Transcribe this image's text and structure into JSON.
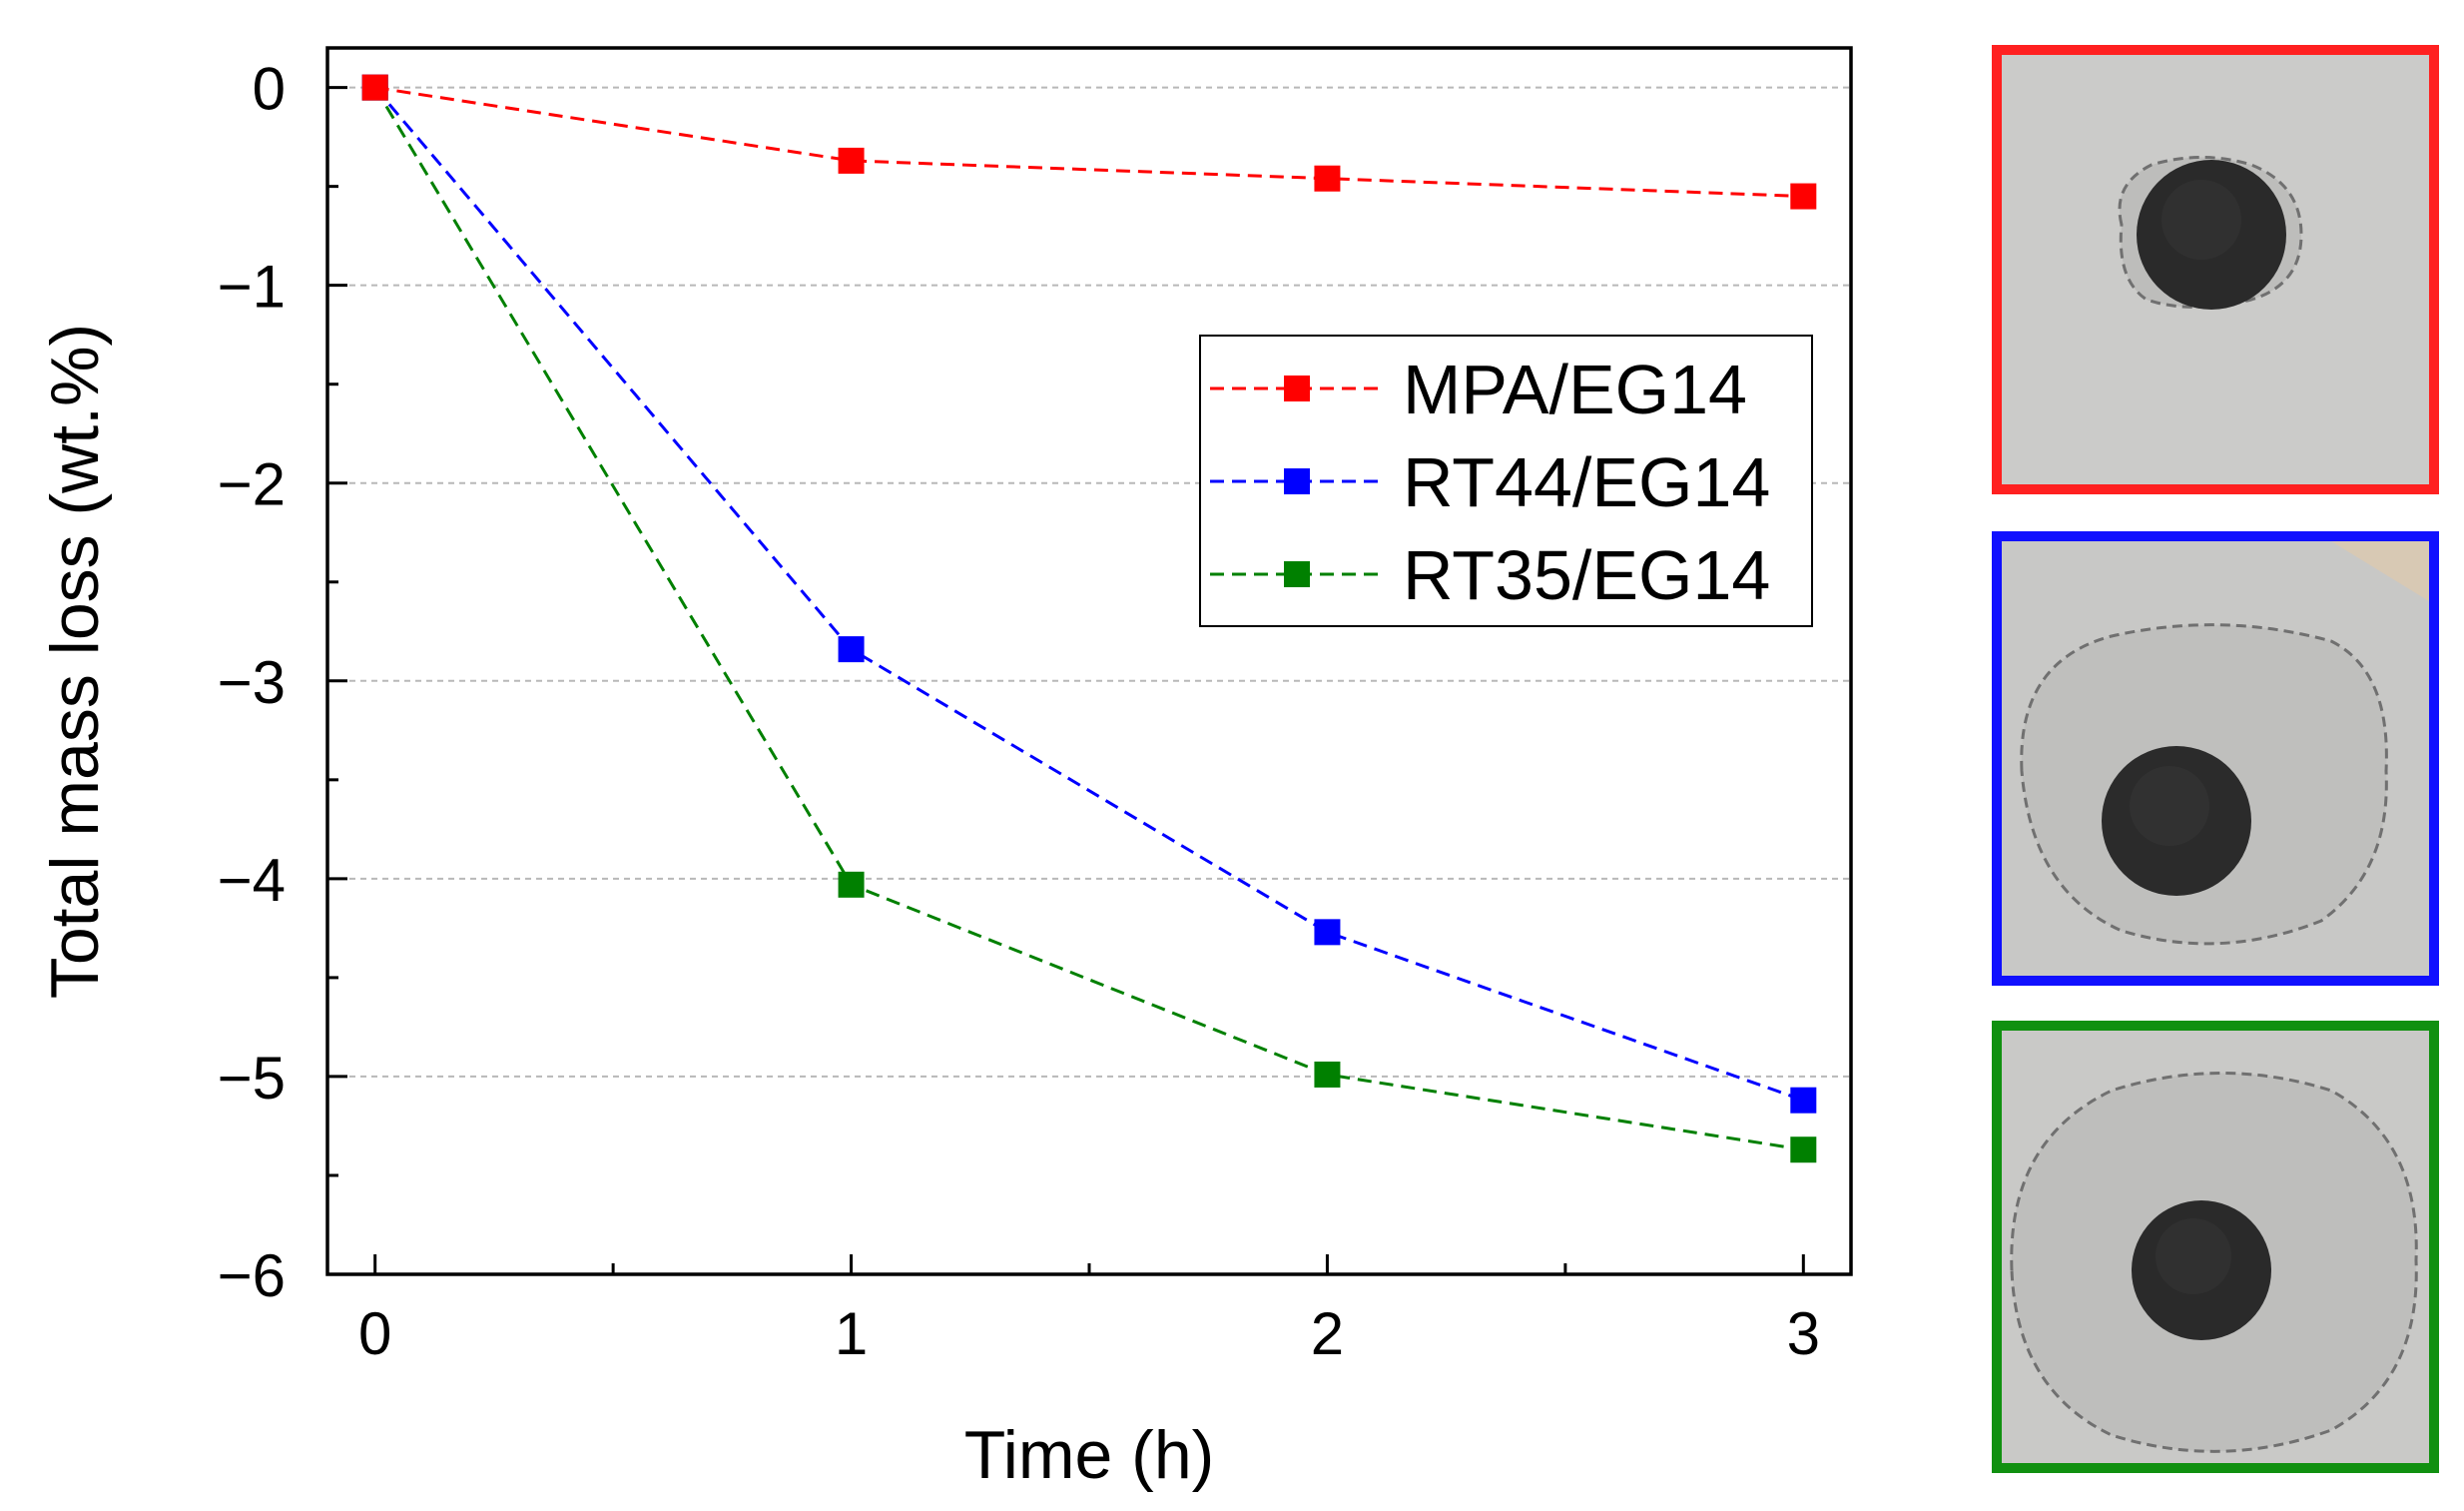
{
  "chart_data": {
    "type": "line",
    "xlabel": "Time (h)",
    "ylabel": "Total mass loss (wt.%)",
    "x": [
      0,
      1,
      2,
      3
    ],
    "xlim": [
      -0.1,
      3.1
    ],
    "ylim": [
      -6,
      0.2
    ],
    "xticks": [
      0,
      1,
      2,
      3
    ],
    "xtick_labels": [
      "0",
      "1",
      "2",
      "3"
    ],
    "yticks": [
      0,
      -1,
      -2,
      -3,
      -4,
      -5,
      -6
    ],
    "ytick_labels": [
      "0",
      "−1",
      "−2",
      "−3",
      "−4",
      "−5",
      "−6"
    ],
    "grid": "horizontal dashed",
    "legend_position": "center-right",
    "series": [
      {
        "name": "MPA/EG14",
        "color": "#ff0000",
        "values": [
          0,
          -0.37,
          -0.46,
          -0.55
        ]
      },
      {
        "name": "RT44/EG14",
        "color": "#0000ff",
        "values": [
          0,
          -2.84,
          -4.27,
          -5.12
        ]
      },
      {
        "name": "RT35/EG14",
        "color": "#008000",
        "values": [
          0,
          -4.03,
          -4.99,
          -5.37
        ]
      }
    ]
  },
  "photos": [
    {
      "border_color": "#ff2020",
      "caption": ""
    },
    {
      "border_color": "#1010ff",
      "caption": ""
    },
    {
      "border_color": "#109010",
      "caption": ""
    }
  ]
}
